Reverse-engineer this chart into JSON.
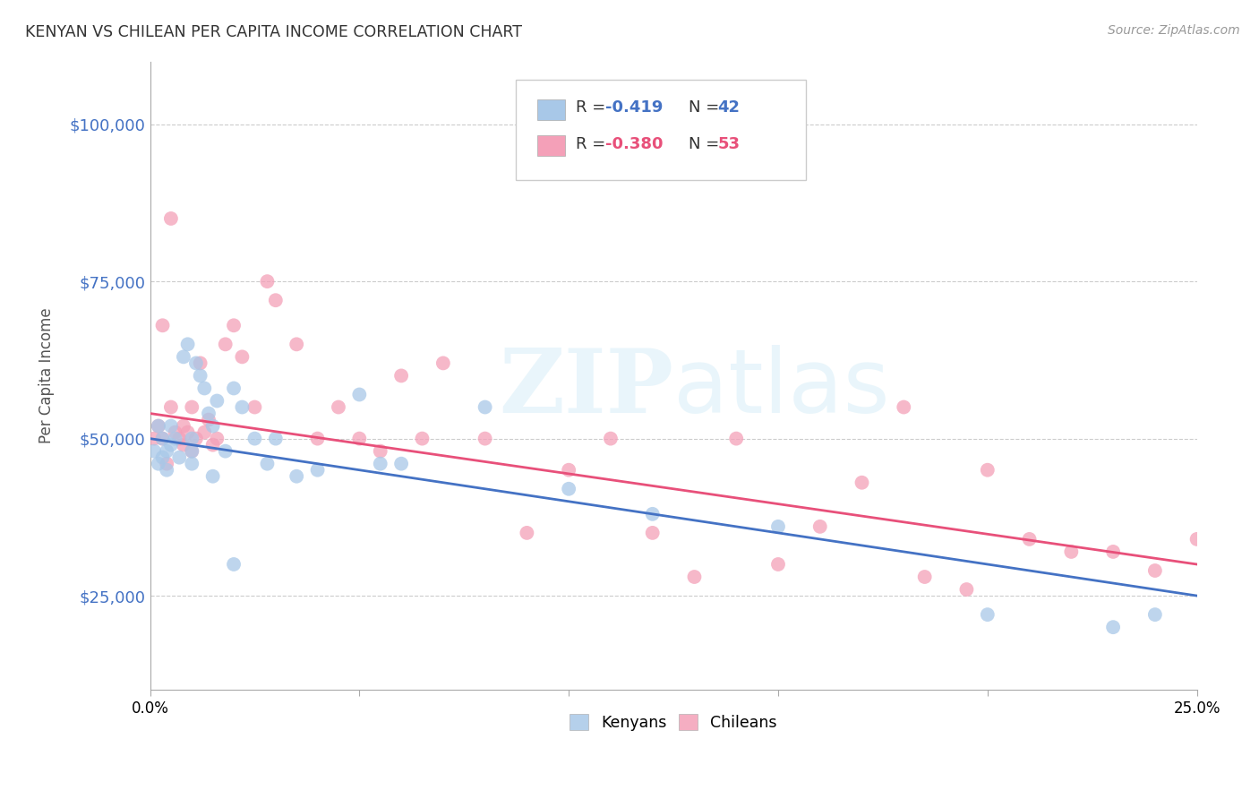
{
  "title": "KENYAN VS CHILEAN PER CAPITA INCOME CORRELATION CHART",
  "source": "Source: ZipAtlas.com",
  "ylabel": "Per Capita Income",
  "xlim": [
    0,
    0.25
  ],
  "ylim": [
    10000,
    110000
  ],
  "yticks": [
    25000,
    50000,
    75000,
    100000
  ],
  "ytick_labels": [
    "$25,000",
    "$50,000",
    "$75,000",
    "$100,000"
  ],
  "xticks": [
    0.0,
    0.05,
    0.1,
    0.15,
    0.2,
    0.25
  ],
  "xtick_labels": [
    "0.0%",
    "",
    "",
    "",
    "",
    "25.0%"
  ],
  "kenyan_color": "#A8C8E8",
  "chilean_color": "#F4A0B8",
  "kenyan_line_color": "#4472C4",
  "chilean_line_color": "#E8507A",
  "legend_R_kenyan": "-0.419",
  "legend_N_kenyan": "42",
  "legend_R_chilean": "-0.380",
  "legend_N_chilean": "53",
  "kenyan_label": "Kenyans",
  "chilean_label": "Chileans",
  "background_color": "#FFFFFF",
  "grid_color": "#CCCCCC",
  "kenyan_x": [
    0.001,
    0.002,
    0.002,
    0.003,
    0.003,
    0.004,
    0.004,
    0.005,
    0.005,
    0.006,
    0.007,
    0.008,
    0.009,
    0.01,
    0.01,
    0.011,
    0.012,
    0.013,
    0.014,
    0.015,
    0.016,
    0.018,
    0.02,
    0.022,
    0.025,
    0.028,
    0.03,
    0.035,
    0.04,
    0.05,
    0.055,
    0.06,
    0.08,
    0.1,
    0.12,
    0.15,
    0.2,
    0.23,
    0.24,
    0.01,
    0.015,
    0.02
  ],
  "kenyan_y": [
    48000,
    46000,
    52000,
    50000,
    47000,
    48000,
    45000,
    52000,
    49000,
    50000,
    47000,
    63000,
    65000,
    50000,
    48000,
    62000,
    60000,
    58000,
    54000,
    52000,
    56000,
    48000,
    58000,
    55000,
    50000,
    46000,
    50000,
    44000,
    45000,
    57000,
    46000,
    46000,
    55000,
    42000,
    38000,
    36000,
    22000,
    20000,
    22000,
    46000,
    44000,
    30000
  ],
  "chilean_x": [
    0.001,
    0.002,
    0.003,
    0.003,
    0.004,
    0.005,
    0.005,
    0.006,
    0.007,
    0.008,
    0.008,
    0.009,
    0.01,
    0.01,
    0.011,
    0.012,
    0.013,
    0.014,
    0.015,
    0.016,
    0.018,
    0.02,
    0.022,
    0.025,
    0.028,
    0.03,
    0.035,
    0.04,
    0.045,
    0.05,
    0.055,
    0.06,
    0.065,
    0.07,
    0.08,
    0.09,
    0.1,
    0.11,
    0.12,
    0.13,
    0.14,
    0.15,
    0.16,
    0.17,
    0.18,
    0.2,
    0.21,
    0.22,
    0.23,
    0.24,
    0.25,
    0.185,
    0.195
  ],
  "chilean_y": [
    50000,
    52000,
    68000,
    50000,
    46000,
    55000,
    85000,
    51000,
    50000,
    52000,
    49000,
    51000,
    48000,
    55000,
    50000,
    62000,
    51000,
    53000,
    49000,
    50000,
    65000,
    68000,
    63000,
    55000,
    75000,
    72000,
    65000,
    50000,
    55000,
    50000,
    48000,
    60000,
    50000,
    62000,
    50000,
    35000,
    45000,
    50000,
    35000,
    28000,
    50000,
    30000,
    36000,
    43000,
    55000,
    45000,
    34000,
    32000,
    32000,
    29000,
    34000,
    28000,
    26000
  ]
}
